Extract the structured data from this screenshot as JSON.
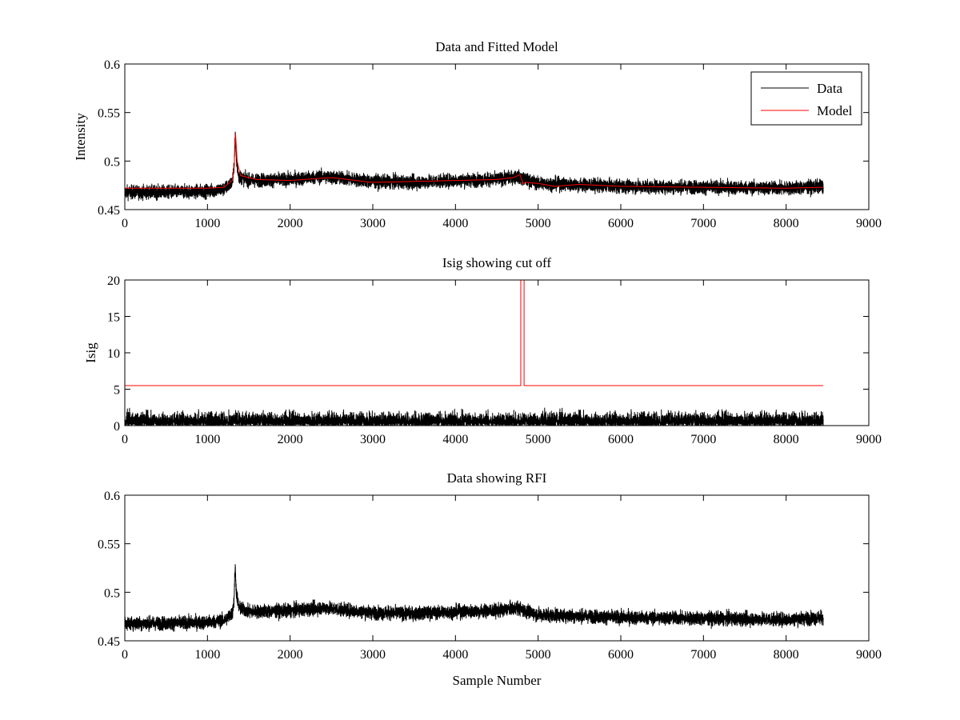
{
  "figure": {
    "background": "#ffffff"
  },
  "colors": {
    "data": "#000000",
    "model": "#ff0000",
    "axes": "#000000"
  },
  "chart_data": [
    {
      "type": "line",
      "title": "Data and Fitted Model",
      "xlabel": "",
      "ylabel": "Intensity",
      "xlim": [
        0,
        9000
      ],
      "ylim": [
        0.45,
        0.6
      ],
      "xticks": [
        0,
        1000,
        2000,
        3000,
        4000,
        5000,
        6000,
        7000,
        8000,
        9000
      ],
      "yticks": [
        0.45,
        0.5,
        0.55,
        0.6
      ],
      "xtick_labels": [
        "0",
        "1000",
        "2000",
        "3000",
        "4000",
        "5000",
        "6000",
        "7000",
        "8000",
        "9000"
      ],
      "ytick_labels": [
        "0.45",
        "0.5",
        "0.55",
        "0.6"
      ],
      "grid": false,
      "legend": {
        "position": "top-right",
        "entries": [
          "Data",
          "Model"
        ]
      },
      "series": [
        {
          "name": "Data",
          "color": "#000000",
          "kind": "noisy",
          "n_samples": 8450,
          "noise_amplitude": 0.0075,
          "trend": [
            [
              0,
              0.468
            ],
            [
              500,
              0.468
            ],
            [
              1000,
              0.469
            ],
            [
              1200,
              0.471
            ],
            [
              1300,
              0.478
            ],
            [
              1320,
              0.49
            ],
            [
              1335,
              0.527
            ],
            [
              1350,
              0.5
            ],
            [
              1380,
              0.484
            ],
            [
              1500,
              0.48
            ],
            [
              2000,
              0.481
            ],
            [
              2400,
              0.484
            ],
            [
              3000,
              0.479
            ],
            [
              3500,
              0.478
            ],
            [
              4000,
              0.48
            ],
            [
              4500,
              0.481
            ],
            [
              4750,
              0.484
            ],
            [
              4800,
              0.482
            ],
            [
              5000,
              0.477
            ],
            [
              6000,
              0.474
            ],
            [
              7000,
              0.473
            ],
            [
              8000,
              0.472
            ],
            [
              8450,
              0.474
            ]
          ]
        },
        {
          "name": "Model",
          "color": "#ff0000",
          "kind": "line",
          "points": [
            [
              0,
              0.472
            ],
            [
              1000,
              0.472
            ],
            [
              1200,
              0.473
            ],
            [
              1300,
              0.48
            ],
            [
              1320,
              0.49
            ],
            [
              1340,
              0.528
            ],
            [
              1360,
              0.5
            ],
            [
              1400,
              0.485
            ],
            [
              1600,
              0.481
            ],
            [
              2000,
              0.48
            ],
            [
              2500,
              0.483
            ],
            [
              3000,
              0.478
            ],
            [
              3500,
              0.479
            ],
            [
              4000,
              0.48
            ],
            [
              4500,
              0.481
            ],
            [
              4700,
              0.483
            ],
            [
              4780,
              0.486
            ],
            [
              4820,
              0.477
            ],
            [
              4850,
              0.478
            ],
            [
              5000,
              0.477
            ],
            [
              5200,
              0.474
            ],
            [
              5500,
              0.476
            ],
            [
              6000,
              0.474
            ],
            [
              7000,
              0.473
            ],
            [
              8000,
              0.472
            ],
            [
              8450,
              0.473
            ]
          ]
        }
      ]
    },
    {
      "type": "line",
      "title": "Isig showing cut off",
      "xlabel": "",
      "ylabel": "Isig",
      "xlim": [
        0,
        9000
      ],
      "ylim": [
        0,
        20
      ],
      "xticks": [
        0,
        1000,
        2000,
        3000,
        4000,
        5000,
        6000,
        7000,
        8000,
        9000
      ],
      "yticks": [
        0,
        5,
        10,
        15,
        20
      ],
      "xtick_labels": [
        "0",
        "1000",
        "2000",
        "3000",
        "4000",
        "5000",
        "6000",
        "7000",
        "8000",
        "9000"
      ],
      "ytick_labels": [
        "0",
        "5",
        "10",
        "15",
        "20"
      ],
      "grid": false,
      "series": [
        {
          "color": "#000000",
          "kind": "noisy_abs",
          "n_samples": 8450,
          "mean": 0.8,
          "max": 3.8
        },
        {
          "color": "#ff0000",
          "kind": "line",
          "points": [
            [
              0,
              5.5
            ],
            [
              4790,
              5.5
            ],
            [
              4790,
              20
            ],
            [
              4830,
              20
            ],
            [
              4830,
              5.5
            ],
            [
              8450,
              5.5
            ]
          ]
        }
      ]
    },
    {
      "type": "line",
      "title": "Data showing RFI",
      "xlabel": "Sample Number",
      "ylabel": "",
      "xlim": [
        0,
        9000
      ],
      "ylim": [
        0.45,
        0.6
      ],
      "xticks": [
        0,
        1000,
        2000,
        3000,
        4000,
        5000,
        6000,
        7000,
        8000,
        9000
      ],
      "yticks": [
        0.45,
        0.5,
        0.55,
        0.6
      ],
      "xtick_labels": [
        "0",
        "1000",
        "2000",
        "3000",
        "4000",
        "5000",
        "6000",
        "7000",
        "8000",
        "9000"
      ],
      "ytick_labels": [
        "0.45",
        "0.5",
        "0.55",
        "0.6"
      ],
      "grid": false,
      "series": [
        {
          "color": "#000000",
          "kind": "noisy",
          "n_samples": 8450,
          "noise_amplitude": 0.0075,
          "trend": [
            [
              0,
              0.468
            ],
            [
              500,
              0.468
            ],
            [
              1000,
              0.469
            ],
            [
              1200,
              0.471
            ],
            [
              1300,
              0.478
            ],
            [
              1320,
              0.49
            ],
            [
              1335,
              0.527
            ],
            [
              1350,
              0.5
            ],
            [
              1380,
              0.484
            ],
            [
              1500,
              0.48
            ],
            [
              2000,
              0.481
            ],
            [
              2400,
              0.484
            ],
            [
              3000,
              0.479
            ],
            [
              3500,
              0.478
            ],
            [
              4000,
              0.48
            ],
            [
              4500,
              0.481
            ],
            [
              4750,
              0.484
            ],
            [
              4800,
              0.482
            ],
            [
              5000,
              0.477
            ],
            [
              6000,
              0.474
            ],
            [
              7000,
              0.473
            ],
            [
              8000,
              0.472
            ],
            [
              8450,
              0.474
            ]
          ]
        }
      ]
    }
  ]
}
